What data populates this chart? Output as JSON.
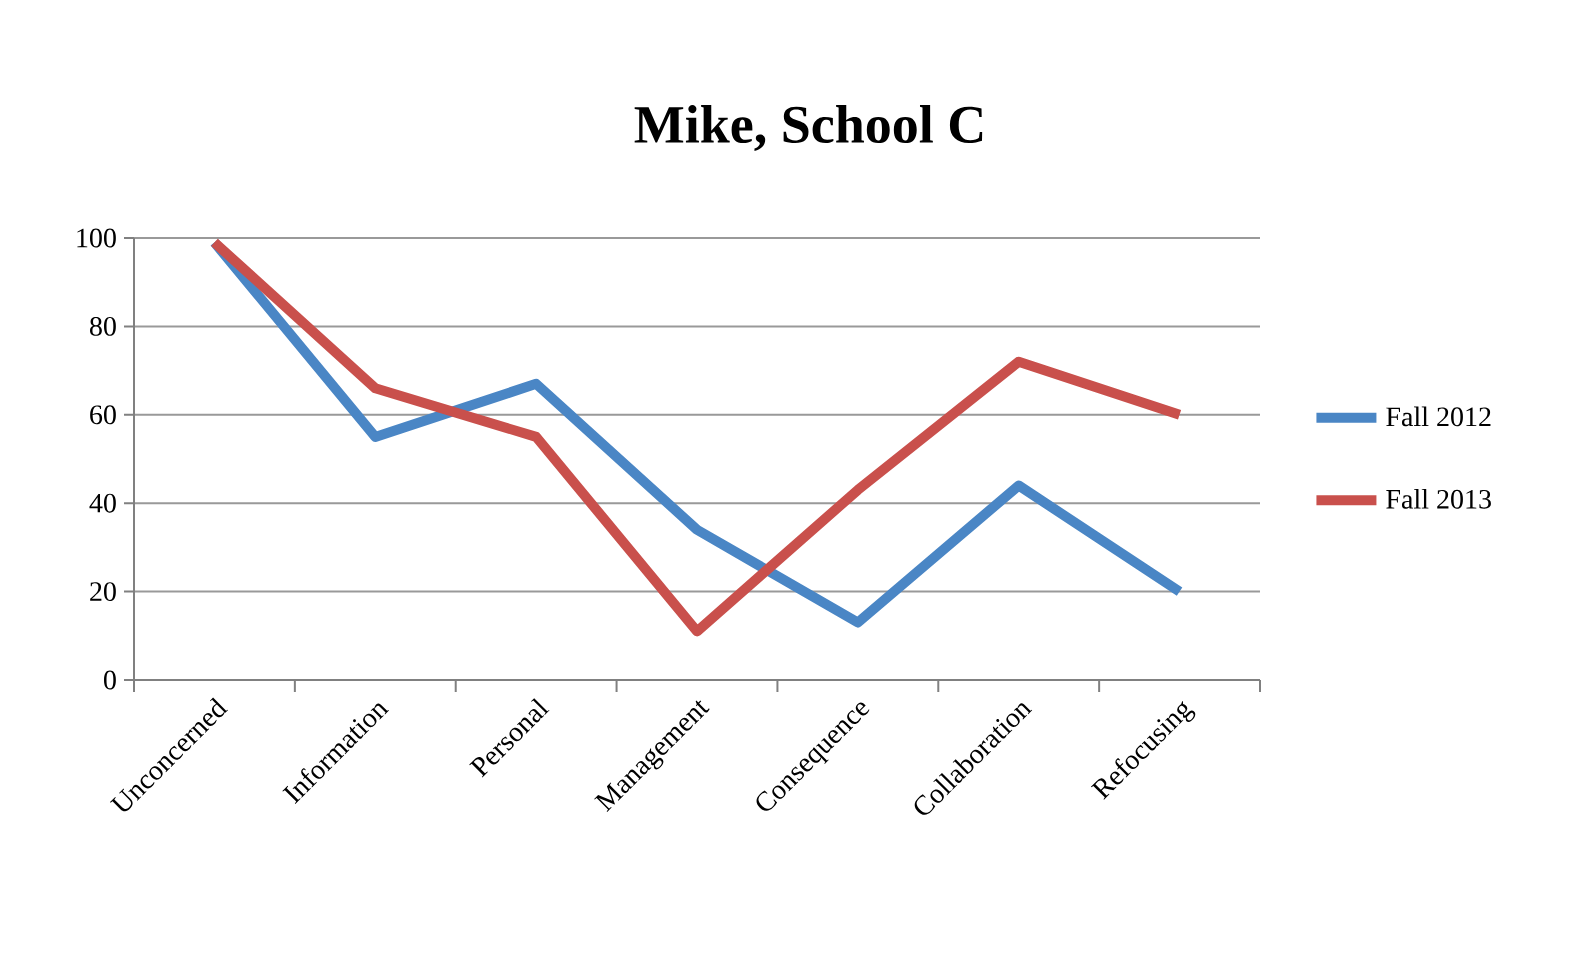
{
  "chart_data": {
    "type": "line",
    "title": "Mike, School C",
    "categories": [
      "Unconcerned",
      "Information",
      "Personal",
      "Management",
      "Consequence",
      "Collaboration",
      "Refocusing"
    ],
    "series": [
      {
        "name": "Fall 2012",
        "color": "#4a86c5",
        "values": [
          99,
          55,
          67,
          34,
          13,
          44,
          20
        ]
      },
      {
        "name": "Fall 2013",
        "color": "#c9504c",
        "values": [
          99,
          66,
          55,
          11,
          43,
          72,
          60
        ]
      }
    ],
    "ylim": [
      0,
      100
    ],
    "yticks": [
      0,
      20,
      40,
      60,
      80,
      100
    ],
    "grid": "y",
    "legend": "right"
  }
}
